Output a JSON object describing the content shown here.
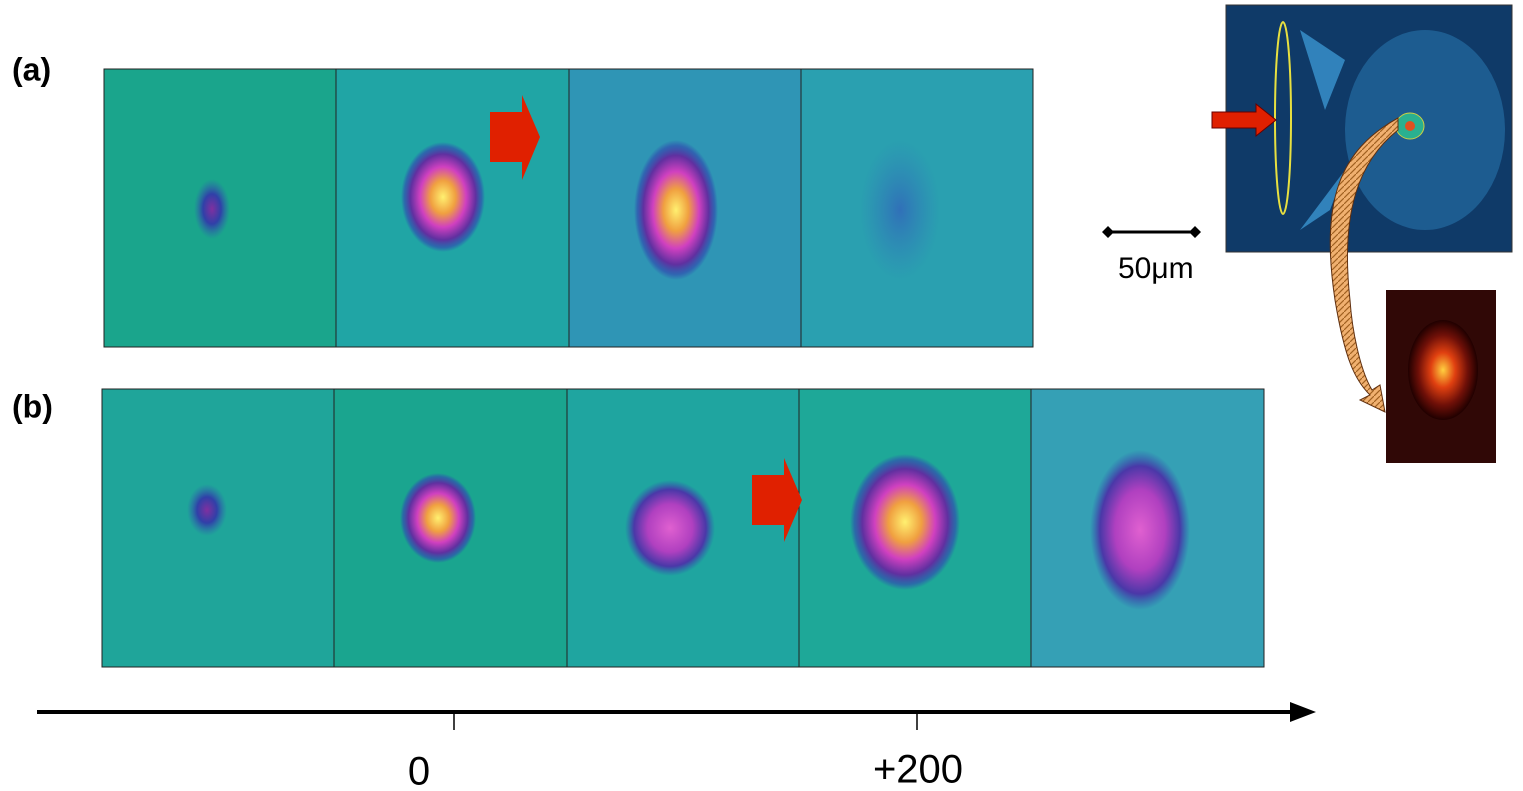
{
  "panels": {
    "a": "(a)",
    "b": "(b)"
  },
  "scale_bar": "50μm",
  "time_axis": {
    "ticks": [
      "0",
      "+200"
    ]
  }
}
